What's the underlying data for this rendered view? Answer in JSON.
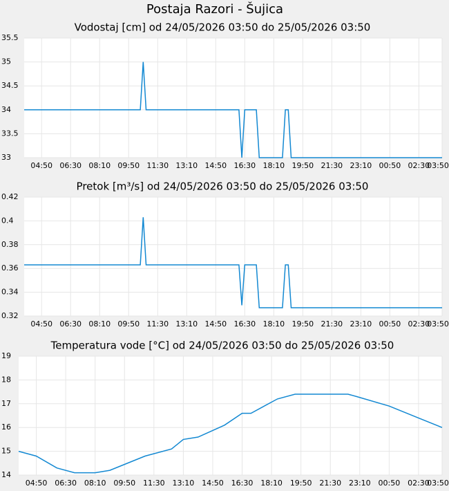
{
  "title": "Postaja Razori - Šujica",
  "chart_data": [
    {
      "type": "line",
      "title": "Vodostaj [cm] od 24/05/2026 03:50 do 25/05/2026 03:50",
      "x": [
        "03:50",
        "10:30",
        "10:40",
        "10:50",
        "16:10",
        "16:20",
        "16:30",
        "17:10",
        "17:20",
        "18:40",
        "18:50",
        "19:00",
        "19:10",
        "03:50"
      ],
      "values": [
        34,
        34,
        35,
        34,
        34,
        33,
        34,
        34,
        33,
        33,
        34,
        34,
        33,
        33
      ],
      "color": "#1288d2",
      "grid": true,
      "xlim": [
        "03:50",
        "03:50"
      ],
      "xticks": [
        "04:50",
        "06:30",
        "08:10",
        "09:50",
        "11:30",
        "13:10",
        "14:50",
        "16:30",
        "18:10",
        "19:50",
        "21:30",
        "23:10",
        "00:50",
        "02:30",
        "03:50"
      ],
      "ylim": [
        33,
        35.5
      ],
      "yticks": [
        33,
        33.5,
        34,
        34.5,
        35,
        35.5
      ]
    },
    {
      "type": "line",
      "title": "Pretok [m³/s] od 24/05/2026 03:50 do 25/05/2026 03:50",
      "x": [
        "03:50",
        "10:30",
        "10:40",
        "10:50",
        "16:10",
        "16:20",
        "16:30",
        "17:10",
        "17:20",
        "18:40",
        "18:50",
        "19:00",
        "19:10",
        "03:50"
      ],
      "values": [
        0.363,
        0.363,
        0.403,
        0.363,
        0.363,
        0.329,
        0.363,
        0.363,
        0.327,
        0.327,
        0.363,
        0.363,
        0.327,
        0.327
      ],
      "color": "#1288d2",
      "grid": true,
      "xlim": [
        "03:50",
        "03:50"
      ],
      "xticks": [
        "04:50",
        "06:30",
        "08:10",
        "09:50",
        "11:30",
        "13:10",
        "14:50",
        "16:30",
        "18:10",
        "19:50",
        "21:30",
        "23:10",
        "00:50",
        "02:30",
        "03:50"
      ],
      "ylim": [
        0.32,
        0.42
      ],
      "yticks": [
        0.32,
        0.34,
        0.36,
        0.38,
        0.4,
        0.42
      ]
    },
    {
      "type": "line",
      "title": "Temperatura vode [°C] od 24/05/2026 03:50 do 25/05/2026 03:50",
      "x": [
        "03:50",
        "04:50",
        "06:00",
        "07:00",
        "08:10",
        "09:00",
        "09:50",
        "11:00",
        "12:30",
        "13:10",
        "14:00",
        "15:30",
        "16:30",
        "17:00",
        "18:30",
        "19:30",
        "22:30",
        "23:00",
        "00:50",
        "02:30",
        "03:50"
      ],
      "values": [
        15.0,
        14.8,
        14.3,
        14.1,
        14.1,
        14.2,
        14.45,
        14.8,
        15.1,
        15.5,
        15.6,
        16.1,
        16.6,
        16.6,
        17.2,
        17.4,
        17.4,
        17.3,
        16.9,
        16.4,
        16.0
      ],
      "color": "#1288d2",
      "grid": true,
      "xlim": [
        "03:50",
        "03:50"
      ],
      "xticks": [
        "04:50",
        "06:30",
        "08:10",
        "09:50",
        "11:30",
        "13:10",
        "14:50",
        "16:30",
        "18:10",
        "19:50",
        "21:30",
        "23:10",
        "00:50",
        "02:30",
        "03:50"
      ],
      "ylim": [
        14,
        19
      ],
      "yticks": [
        14,
        15,
        16,
        17,
        18,
        19
      ]
    }
  ]
}
